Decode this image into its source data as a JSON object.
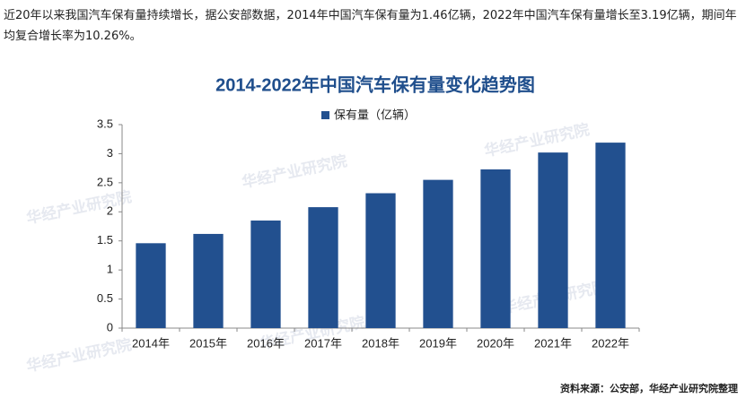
{
  "intro": "近20年以来我国汽车保有量持续增长，据公安部数据，2014年中国汽车保有量为1.46亿辆，2022年中国汽车保有量增长至3.19亿辆，期间年均复合增长率为10.26%。",
  "watermark": "华经产业研究院",
  "chart_data": {
    "type": "bar",
    "title": "2014-2022年中国汽车保有量变化趋势图",
    "categories": [
      "2014年",
      "2015年",
      "2016年",
      "2017年",
      "2018年",
      "2019年",
      "2020年",
      "2021年",
      "2022年"
    ],
    "series": [
      {
        "name": "保有量（亿辆）",
        "color": "#22508f",
        "values": [
          1.46,
          1.62,
          1.85,
          2.08,
          2.32,
          2.55,
          2.73,
          3.02,
          3.19
        ]
      }
    ],
    "ylim": [
      0,
      3.5
    ],
    "yticks": [
      0,
      0.5,
      1,
      1.5,
      2,
      2.5,
      3,
      3.5
    ],
    "grid": false
  },
  "source": "资料来源：公安部，华经产业研究院整理"
}
